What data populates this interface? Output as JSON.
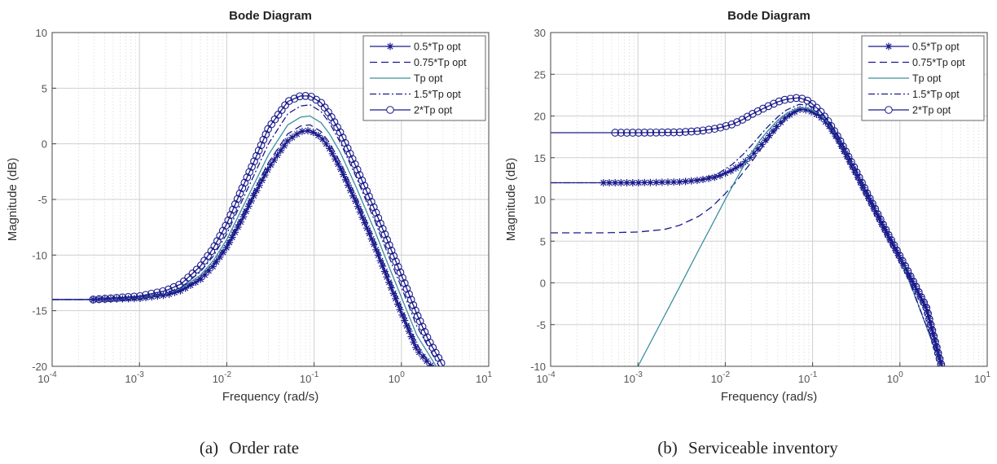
{
  "chart_data": [
    {
      "panel": "a",
      "type": "line",
      "title": "Bode Diagram",
      "xlabel": "Frequency  (rad/s)",
      "ylabel": "Magnitude (dB)",
      "xscale": "log",
      "xlim": [
        0.0001,
        10
      ],
      "ylim": [
        -20,
        10
      ],
      "xticks": [
        0.0001,
        0.001,
        0.01,
        0.1,
        1,
        10
      ],
      "xtick_labels": [
        [
          "10",
          "-4"
        ],
        [
          "10",
          "-3"
        ],
        [
          "10",
          "-2"
        ],
        [
          "10",
          "-1"
        ],
        [
          "10",
          "0"
        ],
        [
          "10",
          "1"
        ]
      ],
      "yticks": [
        10,
        5,
        0,
        -5,
        -10,
        -15,
        -20
      ],
      "ytick_labels": [
        "10",
        "5",
        "0",
        "-5",
        "-10",
        "-15",
        "-20"
      ],
      "grid": true,
      "legend_position": "top-right",
      "caption_label": "(a)",
      "caption": "Order rate",
      "series": [
        {
          "name": "0.5*Tp opt",
          "color": "#1a1a8c",
          "style": "solid",
          "marker": "star",
          "x": [
            0.0001,
            0.0003,
            0.001,
            0.002,
            0.003,
            0.005,
            0.007,
            0.01,
            0.015,
            0.02,
            0.03,
            0.05,
            0.07,
            0.09,
            0.12,
            0.15,
            0.2,
            0.3,
            0.5,
            0.7,
            1,
            1.5,
            2.2
          ],
          "y": [
            -14,
            -14,
            -13.9,
            -13.6,
            -13.2,
            -12.2,
            -11,
            -9.3,
            -6.8,
            -4.8,
            -2.2,
            0.3,
            1.1,
            1.2,
            0.6,
            -0.4,
            -2.2,
            -5.2,
            -9.3,
            -12.2,
            -15.2,
            -18.5,
            -20
          ]
        },
        {
          "name": "0.75*Tp opt",
          "color": "#1a1a8c",
          "style": "dashed",
          "marker": "none",
          "x": [
            0.0001,
            0.0003,
            0.001,
            0.002,
            0.003,
            0.005,
            0.007,
            0.01,
            0.015,
            0.02,
            0.03,
            0.05,
            0.07,
            0.09,
            0.12,
            0.15,
            0.2,
            0.3,
            0.5,
            0.7,
            1,
            1.5,
            2.2
          ],
          "y": [
            -14,
            -14,
            -13.9,
            -13.55,
            -13.1,
            -12.0,
            -10.8,
            -9.0,
            -6.4,
            -4.4,
            -1.7,
            0.9,
            1.6,
            1.7,
            1.1,
            0.1,
            -1.7,
            -4.7,
            -8.8,
            -11.7,
            -14.7,
            -18.0,
            -20
          ]
        },
        {
          "name": "Tp opt",
          "color": "#3a8fa0",
          "style": "solid",
          "marker": "none",
          "x": [
            0.0001,
            0.0003,
            0.001,
            0.002,
            0.003,
            0.005,
            0.007,
            0.01,
            0.015,
            0.02,
            0.03,
            0.05,
            0.07,
            0.09,
            0.12,
            0.15,
            0.2,
            0.3,
            0.5,
            0.7,
            1,
            1.5,
            2.5
          ],
          "y": [
            -14,
            -14,
            -13.85,
            -13.5,
            -13.0,
            -11.8,
            -10.5,
            -8.6,
            -5.8,
            -3.8,
            -1.0,
            1.7,
            2.4,
            2.5,
            1.9,
            0.9,
            -0.8,
            -3.8,
            -7.9,
            -10.8,
            -13.8,
            -17.2,
            -20
          ]
        },
        {
          "name": "1.5*Tp opt",
          "color": "#1a1a8c",
          "style": "dashdot",
          "marker": "none",
          "x": [
            0.0001,
            0.0003,
            0.001,
            0.002,
            0.003,
            0.005,
            0.007,
            0.01,
            0.015,
            0.02,
            0.03,
            0.05,
            0.07,
            0.09,
            0.12,
            0.15,
            0.2,
            0.3,
            0.5,
            0.7,
            1,
            1.5,
            2.7
          ],
          "y": [
            -14,
            -14,
            -13.8,
            -13.4,
            -12.9,
            -11.5,
            -10.1,
            -8.1,
            -5.1,
            -3.0,
            0,
            2.7,
            3.4,
            3.5,
            2.9,
            1.9,
            0.1,
            -2.9,
            -7.0,
            -9.9,
            -12.9,
            -16.4,
            -20
          ]
        },
        {
          "name": "2*Tp opt",
          "color": "#1a1a8c",
          "style": "solid",
          "marker": "circle",
          "x": [
            0.0001,
            0.0003,
            0.001,
            0.002,
            0.003,
            0.005,
            0.007,
            0.01,
            0.015,
            0.02,
            0.03,
            0.05,
            0.07,
            0.09,
            0.12,
            0.15,
            0.2,
            0.3,
            0.5,
            0.7,
            1,
            1.5,
            2,
            3
          ],
          "y": [
            -14,
            -14,
            -13.7,
            -13.2,
            -12.6,
            -11.0,
            -9.4,
            -7.2,
            -4.0,
            -1.8,
            1.4,
            3.8,
            4.3,
            4.3,
            3.7,
            2.7,
            1.0,
            -2.0,
            -6.0,
            -8.8,
            -11.8,
            -15.3,
            -17.5,
            -20
          ]
        }
      ]
    },
    {
      "panel": "b",
      "type": "line",
      "title": "Bode Diagram",
      "xlabel": "Frequency  (rad/s)",
      "ylabel": "Magnitude (dB)",
      "xscale": "log",
      "xlim": [
        0.0001,
        10
      ],
      "ylim": [
        -10,
        30
      ],
      "xticks": [
        0.0001,
        0.001,
        0.01,
        0.1,
        1,
        10
      ],
      "xtick_labels": [
        [
          "10",
          "-4"
        ],
        [
          "10",
          "-3"
        ],
        [
          "10",
          "-2"
        ],
        [
          "10",
          "-1"
        ],
        [
          "10",
          "0"
        ],
        [
          "10",
          "1"
        ]
      ],
      "yticks": [
        30,
        25,
        20,
        15,
        10,
        5,
        0,
        -5,
        -10
      ],
      "ytick_labels": [
        "30",
        "25",
        "20",
        "15",
        "10",
        "5",
        "0",
        "-5",
        "-10"
      ],
      "grid": true,
      "legend_position": "top-right",
      "caption_label": "(b)",
      "caption": "Serviceable inventory",
      "series": [
        {
          "name": "0.5*Tp opt",
          "color": "#1a1a8c",
          "style": "solid",
          "marker": "star",
          "x": [
            0.0001,
            0.0004,
            0.001,
            0.003,
            0.005,
            0.008,
            0.012,
            0.016,
            0.02,
            0.03,
            0.04,
            0.05,
            0.07,
            0.09,
            0.12,
            0.15,
            0.2,
            0.3,
            0.5,
            0.7,
            1,
            1.5,
            2,
            3
          ],
          "y": [
            12,
            12,
            12,
            12.1,
            12.3,
            12.7,
            13.5,
            14.3,
            15.2,
            17.3,
            18.9,
            19.9,
            20.8,
            20.7,
            20.0,
            19.0,
            17.0,
            13.5,
            9.0,
            6.0,
            3.0,
            -0.5,
            -3.0,
            -10
          ]
        },
        {
          "name": "0.75*Tp opt",
          "color": "#1a1a8c",
          "style": "dashed",
          "marker": "none",
          "x": [
            0.0001,
            0.0004,
            0.001,
            0.002,
            0.003,
            0.005,
            0.007,
            0.01,
            0.013,
            0.016,
            0.02,
            0.025,
            0.03,
            0.04,
            0.05,
            0.07,
            0.09,
            0.12,
            0.15,
            0.2,
            0.3,
            0.5,
            1,
            3
          ],
          "y": [
            6,
            6,
            6.1,
            6.4,
            6.9,
            8.0,
            9.1,
            10.7,
            12.0,
            13.2,
            14.5,
            15.9,
            17.0,
            18.6,
            19.7,
            20.8,
            20.8,
            20.1,
            19.1,
            17.1,
            13.6,
            9.1,
            3.1,
            -10
          ]
        },
        {
          "name": "Tp opt",
          "color": "#3a8fa0",
          "style": "solid",
          "marker": "none",
          "x": [
            0.001,
            0.002,
            0.003,
            0.005,
            0.007,
            0.01,
            0.013,
            0.016,
            0.02,
            0.025,
            0.03,
            0.04,
            0.05,
            0.07,
            0.09,
            0.12,
            0.15,
            0.2,
            0.3,
            0.5,
            1,
            3
          ],
          "y": [
            -10,
            -4,
            -0.5,
            4.0,
            6.9,
            10.0,
            12.2,
            13.9,
            15.6,
            17.1,
            18.1,
            19.5,
            20.3,
            21.0,
            20.9,
            20.2,
            19.2,
            17.2,
            13.7,
            9.2,
            3.2,
            -10
          ]
        },
        {
          "name": "1.5*Tp opt",
          "color": "#1a1a8c",
          "style": "dashdot",
          "marker": "none",
          "x": [
            0.0001,
            0.0004,
            0.001,
            0.003,
            0.005,
            0.008,
            0.012,
            0.016,
            0.02,
            0.03,
            0.04,
            0.05,
            0.07,
            0.09,
            0.12,
            0.15,
            0.2,
            0.3,
            0.5,
            1,
            3
          ],
          "y": [
            12,
            12,
            12,
            12.1,
            12.4,
            13.0,
            14.2,
            15.4,
            16.5,
            18.6,
            19.9,
            20.7,
            21.4,
            21.3,
            20.6,
            19.6,
            17.5,
            14.0,
            9.4,
            3.3,
            -10
          ]
        },
        {
          "name": "2*Tp opt",
          "color": "#1a1a8c",
          "style": "solid",
          "marker": "circle",
          "x": [
            0.0001,
            0.0005,
            0.001,
            0.003,
            0.005,
            0.008,
            0.012,
            0.016,
            0.02,
            0.03,
            0.04,
            0.05,
            0.07,
            0.09,
            0.12,
            0.15,
            0.2,
            0.3,
            0.5,
            0.7,
            1,
            1.5,
            2,
            3
          ],
          "y": [
            18,
            18,
            18,
            18.05,
            18.2,
            18.5,
            19.0,
            19.6,
            20.2,
            21.1,
            21.7,
            22.0,
            22.2,
            21.8,
            20.7,
            19.4,
            17.3,
            13.8,
            9.2,
            6.2,
            3.2,
            -0.3,
            -2.9,
            -10
          ]
        }
      ]
    }
  ]
}
